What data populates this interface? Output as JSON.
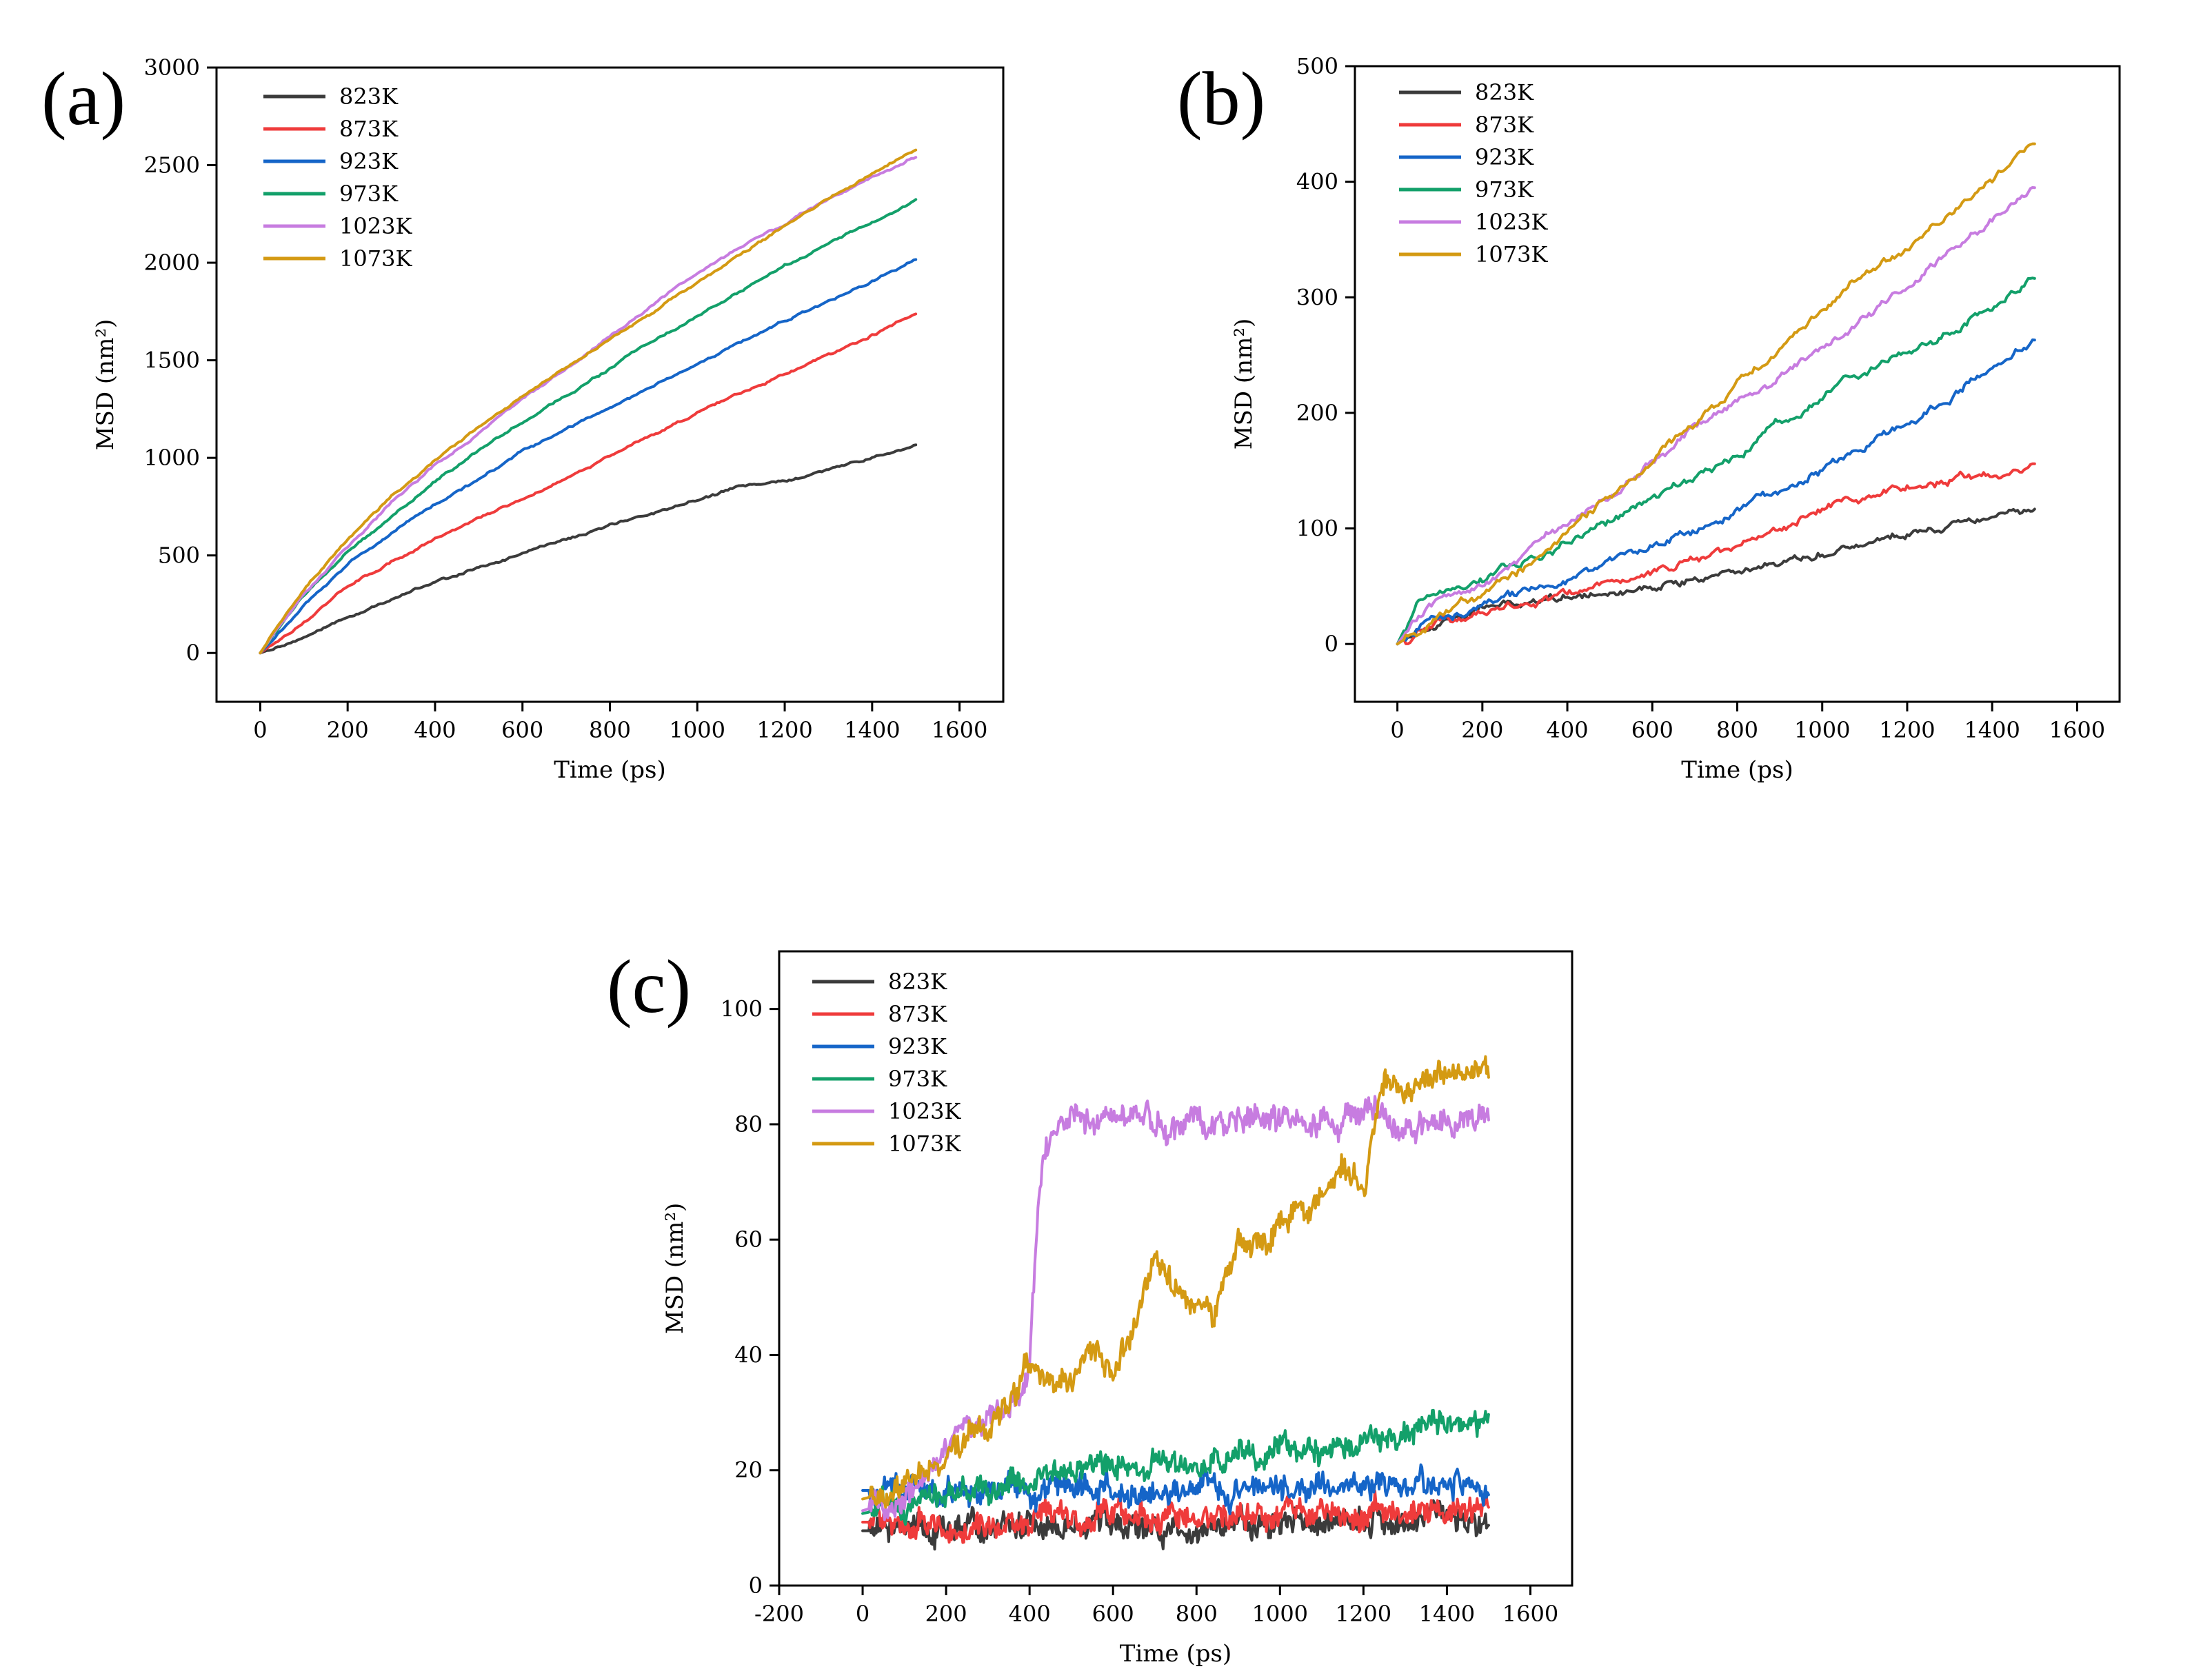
{
  "figure": {
    "panels": [
      "(a)",
      "(b)",
      "(c)"
    ]
  },
  "colors": {
    "823K": "#3b3b3b",
    "873K": "#ef3b3b",
    "923K": "#1565c8",
    "973K": "#13a06a",
    "1023K": "#c77ce0",
    "1073K": "#d49a13"
  },
  "chart_data": [
    {
      "type": "line",
      "panel_label": "(a)",
      "xlabel": "Time (ps)",
      "ylabel": "MSD (nm²)",
      "xlim": [
        -100,
        1700
      ],
      "ylim": [
        -250,
        3000
      ],
      "xticks": [
        0,
        200,
        400,
        600,
        800,
        1000,
        1200,
        1400,
        1600
      ],
      "yticks": [
        0,
        500,
        1000,
        1500,
        2000,
        2500,
        3000
      ],
      "legend_position": "top-left",
      "noise": "smooth",
      "series": [
        {
          "name": "823K",
          "x": [
            0,
            100,
            200,
            300,
            400,
            500,
            600,
            700,
            800,
            900,
            1000,
            1100,
            1200,
            1300,
            1400,
            1500
          ],
          "values": [
            0,
            80,
            180,
            280,
            360,
            440,
            510,
            580,
            650,
            720,
            790,
            850,
            880,
            940,
            1000,
            1060
          ]
        },
        {
          "name": "873K",
          "x": [
            0,
            100,
            200,
            300,
            400,
            500,
            600,
            700,
            800,
            900,
            1000,
            1100,
            1200,
            1300,
            1400,
            1500
          ],
          "values": [
            0,
            160,
            340,
            470,
            580,
            690,
            790,
            900,
            1010,
            1120,
            1230,
            1330,
            1430,
            1530,
            1630,
            1740
          ]
        },
        {
          "name": "923K",
          "x": [
            0,
            100,
            200,
            300,
            400,
            500,
            600,
            700,
            800,
            900,
            1000,
            1100,
            1200,
            1300,
            1400,
            1500
          ],
          "values": [
            0,
            240,
            450,
            620,
            760,
            890,
            1030,
            1150,
            1250,
            1370,
            1480,
            1590,
            1700,
            1800,
            1910,
            2020
          ]
        },
        {
          "name": "973K",
          "x": [
            0,
            100,
            200,
            300,
            400,
            500,
            600,
            700,
            800,
            900,
            1000,
            1100,
            1200,
            1300,
            1400,
            1500
          ],
          "values": [
            0,
            300,
            510,
            700,
            880,
            1040,
            1180,
            1320,
            1460,
            1600,
            1730,
            1850,
            1980,
            2100,
            2210,
            2320
          ]
        },
        {
          "name": "1023K",
          "x": [
            0,
            100,
            200,
            300,
            400,
            500,
            600,
            700,
            800,
            900,
            1000,
            1100,
            1200,
            1300,
            1400,
            1500
          ],
          "values": [
            0,
            310,
            550,
            770,
            960,
            1130,
            1300,
            1450,
            1620,
            1790,
            1940,
            2080,
            2200,
            2330,
            2440,
            2540
          ]
        },
        {
          "name": "1073K",
          "x": [
            0,
            100,
            200,
            300,
            400,
            500,
            600,
            700,
            800,
            900,
            1000,
            1100,
            1200,
            1300,
            1400,
            1500
          ],
          "values": [
            0,
            330,
            580,
            800,
            990,
            1160,
            1310,
            1460,
            1610,
            1750,
            1900,
            2040,
            2190,
            2330,
            2460,
            2580
          ]
        }
      ]
    },
    {
      "type": "line",
      "panel_label": "(b)",
      "xlabel": "Time (ps)",
      "ylabel": "MSD (nm²)",
      "xlim": [
        -100,
        1700
      ],
      "ylim": [
        -50,
        500
      ],
      "xticks": [
        0,
        200,
        400,
        600,
        800,
        1000,
        1200,
        1400,
        1600
      ],
      "yticks": [
        0,
        100,
        200,
        300,
        400,
        500
      ],
      "legend_position": "top-left",
      "noise": "slight",
      "series": [
        {
          "name": "823K",
          "x": [
            0,
            50,
            100,
            200,
            300,
            400,
            500,
            600,
            700,
            800,
            900,
            1000,
            1100,
            1200,
            1300,
            1400,
            1500
          ],
          "values": [
            0,
            14,
            22,
            30,
            37,
            42,
            46,
            50,
            56,
            64,
            72,
            80,
            88,
            96,
            104,
            113,
            120
          ]
        },
        {
          "name": "873K",
          "x": [
            0,
            50,
            100,
            200,
            300,
            400,
            500,
            600,
            700,
            800,
            900,
            1000,
            1100,
            1200,
            1300,
            1400,
            1500
          ],
          "values": [
            0,
            14,
            20,
            28,
            35,
            43,
            52,
            60,
            72,
            86,
            100,
            116,
            126,
            134,
            142,
            146,
            155
          ]
        },
        {
          "name": "923K",
          "x": [
            0,
            50,
            100,
            200,
            300,
            400,
            500,
            600,
            700,
            800,
            900,
            1000,
            1100,
            1200,
            1300,
            1400,
            1500
          ],
          "values": [
            0,
            16,
            22,
            32,
            44,
            56,
            70,
            84,
            98,
            114,
            132,
            152,
            172,
            190,
            215,
            240,
            263
          ]
        },
        {
          "name": "973K",
          "x": [
            0,
            50,
            100,
            200,
            300,
            400,
            500,
            600,
            700,
            800,
            900,
            1000,
            1100,
            1200,
            1300,
            1400,
            1500
          ],
          "values": [
            0,
            38,
            46,
            58,
            74,
            88,
            108,
            126,
            142,
            166,
            190,
            216,
            236,
            252,
            272,
            290,
            320
          ]
        },
        {
          "name": "1023K",
          "x": [
            0,
            50,
            100,
            200,
            300,
            400,
            500,
            600,
            700,
            800,
            900,
            1000,
            1100,
            1200,
            1300,
            1400,
            1500
          ],
          "values": [
            0,
            24,
            34,
            56,
            80,
            106,
            130,
            160,
            188,
            210,
            232,
            256,
            280,
            310,
            340,
            368,
            393
          ]
        },
        {
          "name": "1073K",
          "x": [
            0,
            50,
            100,
            200,
            300,
            400,
            500,
            600,
            700,
            800,
            900,
            1000,
            1100,
            1200,
            1300,
            1400,
            1500
          ],
          "values": [
            0,
            12,
            22,
            42,
            66,
            100,
            128,
            158,
            190,
            226,
            256,
            292,
            318,
            340,
            370,
            400,
            435
          ]
        }
      ]
    },
    {
      "type": "line",
      "panel_label": "(c)",
      "xlabel": "Time (ps)",
      "ylabel": "MSD (nm²)",
      "xlim": [
        -200,
        1700
      ],
      "ylim": [
        0,
        110
      ],
      "xticks": [
        -200,
        0,
        200,
        400,
        600,
        800,
        1000,
        1200,
        1400,
        1600
      ],
      "yticks": [
        0,
        20,
        40,
        60,
        80,
        100
      ],
      "legend_position": "top-left",
      "noise": "strong",
      "series": [
        {
          "name": "823K",
          "x": [
            0,
            100,
            200,
            300,
            400,
            500,
            600,
            700,
            800,
            900,
            1000,
            1100,
            1200,
            1300,
            1400,
            1500
          ],
          "values": [
            9.5,
            9.5,
            9.6,
            9.7,
            9.8,
            9.9,
            10,
            10.1,
            10.2,
            10.3,
            10.5,
            10.7,
            11,
            11.2,
            11.5,
            11.8
          ]
        },
        {
          "name": "873K",
          "x": [
            0,
            100,
            200,
            300,
            400,
            500,
            600,
            700,
            800,
            900,
            1000,
            1100,
            1200,
            1300,
            1400,
            1500
          ],
          "values": [
            11,
            11,
            11.2,
            11.3,
            11.3,
            11.4,
            11.5,
            11.6,
            11.7,
            12,
            12.5,
            12.6,
            12.4,
            12.8,
            13,
            13.5
          ]
        },
        {
          "name": "923K",
          "x": [
            0,
            100,
            200,
            300,
            400,
            500,
            600,
            700,
            800,
            900,
            1000,
            1100,
            1200,
            1300,
            1400,
            1500
          ],
          "values": [
            16.5,
            16.5,
            16.6,
            16.5,
            16.4,
            16.3,
            16.1,
            16,
            16.2,
            16.5,
            16.8,
            17,
            17.2,
            17.3,
            17.4,
            17.3
          ]
        },
        {
          "name": "973K",
          "x": [
            0,
            100,
            200,
            300,
            400,
            500,
            600,
            700,
            800,
            900,
            1000,
            1100,
            1200,
            1300,
            1400,
            1500
          ],
          "values": [
            12.5,
            14,
            15.5,
            17,
            18.5,
            19.5,
            20.5,
            21,
            21.7,
            22.3,
            23,
            23.8,
            24.8,
            26,
            27.5,
            29
          ]
        },
        {
          "name": "1023K",
          "x": [
            0,
            100,
            150,
            200,
            250,
            300,
            350,
            380,
            400,
            420,
            440,
            500,
            600,
            700,
            800,
            900,
            1000,
            1100,
            1200,
            1300,
            1400,
            1500
          ],
          "values": [
            13,
            15,
            20,
            25,
            28,
            29,
            32,
            34,
            40,
            65,
            77,
            80,
            81,
            80,
            80.5,
            81,
            81,
            80.5,
            81,
            80.5,
            81,
            81
          ]
        },
        {
          "name": "1073K",
          "x": [
            0,
            50,
            100,
            150,
            200,
            250,
            300,
            350,
            400,
            450,
            500,
            550,
            600,
            650,
            700,
            750,
            800,
            850,
            900,
            950,
            1000,
            1050,
            1100,
            1150,
            1200,
            1250,
            1300,
            1350,
            1400,
            1450,
            1500
          ],
          "values": [
            15,
            16,
            17,
            20,
            22,
            25,
            27,
            30,
            38,
            35,
            35,
            40,
            36,
            45,
            58,
            52,
            48,
            48,
            58,
            60,
            63,
            65,
            68,
            73,
            70,
            87,
            87,
            88,
            88,
            89,
            90
          ]
        }
      ]
    }
  ]
}
